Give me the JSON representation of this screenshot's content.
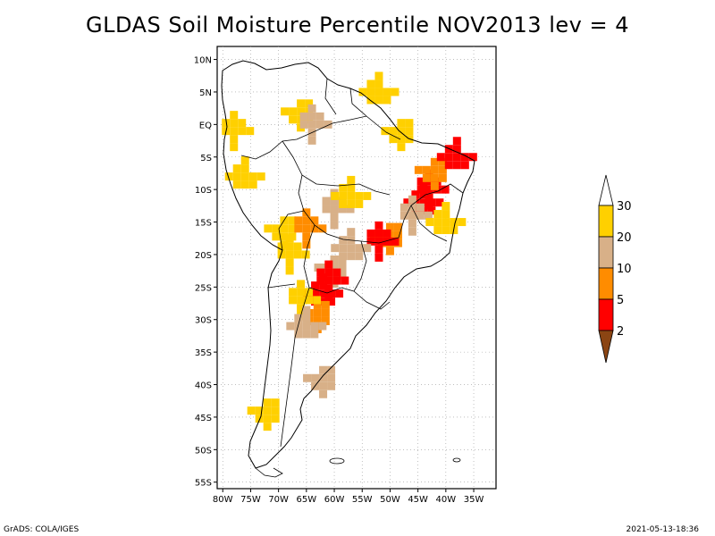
{
  "title": "GLDAS Soil Moisture Percentile NOV2013 lev = 4",
  "footer": {
    "left": "GrADS: COLA/IGES",
    "right": "2021-05-13-18:36"
  },
  "colorbar": {
    "labels": [
      "30",
      "20",
      "10",
      "5",
      "2"
    ],
    "colors": {
      "above_30": "#ffffff",
      "20_30": "#ffd000",
      "10_20": "#d8b088",
      "5_10": "#ff8c00",
      "2_5": "#ff0000",
      "below_2": "#8b4513"
    }
  },
  "chart_data": {
    "type": "heatmap",
    "title": "GLDAS Soil Moisture Percentile NOV2013 lev = 4",
    "xlim": [
      -81,
      -31
    ],
    "ylim": [
      -56,
      12
    ],
    "x_ticks": [
      "80W",
      "75W",
      "70W",
      "65W",
      "60W",
      "55W",
      "50W",
      "45W",
      "40W",
      "35W"
    ],
    "y_ticks": [
      "10N",
      "5N",
      "EQ",
      "5S",
      "10S",
      "15S",
      "20S",
      "25S",
      "30S",
      "35S",
      "40S",
      "45S",
      "50S",
      "55S"
    ],
    "grid": true,
    "legend": "right",
    "levels": [
      2,
      5,
      10,
      20,
      30
    ],
    "regions": [
      {
        "lon": -43,
        "lat": -10,
        "class": "2_5"
      },
      {
        "lon": -44,
        "lat": -12,
        "class": "2_5"
      },
      {
        "lon": -42,
        "lat": -7,
        "class": "5_10"
      },
      {
        "lon": -46,
        "lat": -14,
        "class": "10_20"
      },
      {
        "lon": -40,
        "lat": -15,
        "class": "20_30"
      },
      {
        "lon": -50,
        "lat": -17,
        "class": "5_10"
      },
      {
        "lon": -52,
        "lat": -18,
        "class": "2_5"
      },
      {
        "lon": -57,
        "lat": -19,
        "class": "10_20"
      },
      {
        "lon": -60,
        "lat": -22,
        "class": "10_20"
      },
      {
        "lon": -61,
        "lat": -24,
        "class": "2_5"
      },
      {
        "lon": -62,
        "lat": -26,
        "class": "2_5"
      },
      {
        "lon": -63,
        "lat": -29,
        "class": "5_10"
      },
      {
        "lon": -66,
        "lat": -27,
        "class": "20_30"
      },
      {
        "lon": -65,
        "lat": -31,
        "class": "10_20"
      },
      {
        "lon": -62,
        "lat": -39,
        "class": "10_20"
      },
      {
        "lon": -60,
        "lat": -13,
        "class": "10_20"
      },
      {
        "lon": -57,
        "lat": -11,
        "class": "20_30"
      },
      {
        "lon": -66,
        "lat": 2,
        "class": "20_30"
      },
      {
        "lon": -64,
        "lat": 0,
        "class": "10_20"
      },
      {
        "lon": -52,
        "lat": 5,
        "class": "20_30"
      },
      {
        "lon": -48,
        "lat": -1,
        "class": "20_30"
      },
      {
        "lon": -78,
        "lat": -1,
        "class": "20_30"
      },
      {
        "lon": -76,
        "lat": -8,
        "class": "20_30"
      },
      {
        "lon": -69,
        "lat": -16,
        "class": "20_30"
      },
      {
        "lon": -68,
        "lat": -20,
        "class": "20_30"
      },
      {
        "lon": -38,
        "lat": -5,
        "class": "2_5"
      },
      {
        "lon": -72,
        "lat": -44,
        "class": "20_30"
      },
      {
        "lon": -65,
        "lat": -16,
        "class": "5_10"
      }
    ]
  }
}
